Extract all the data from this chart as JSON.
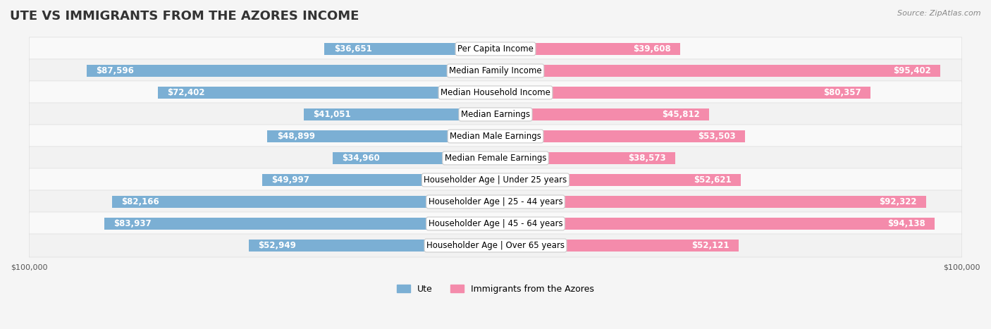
{
  "title": "UTE VS IMMIGRANTS FROM THE AZORES INCOME",
  "source": "Source: ZipAtlas.com",
  "categories": [
    "Per Capita Income",
    "Median Family Income",
    "Median Household Income",
    "Median Earnings",
    "Median Male Earnings",
    "Median Female Earnings",
    "Householder Age | Under 25 years",
    "Householder Age | 25 - 44 years",
    "Householder Age | 45 - 64 years",
    "Householder Age | Over 65 years"
  ],
  "ute_values": [
    36651,
    87596,
    72402,
    41051,
    48899,
    34960,
    49997,
    82166,
    83937,
    52949
  ],
  "azores_values": [
    39608,
    95402,
    80357,
    45812,
    53503,
    38573,
    52621,
    92322,
    94138,
    52121
  ],
  "ute_labels": [
    "$36,651",
    "$87,596",
    "$72,402",
    "$41,051",
    "$48,899",
    "$34,960",
    "$49,997",
    "$82,166",
    "$83,937",
    "$52,949"
  ],
  "azores_labels": [
    "$39,608",
    "$95,402",
    "$80,357",
    "$45,812",
    "$53,503",
    "$38,573",
    "$52,621",
    "$92,322",
    "$94,138",
    "$52,121"
  ],
  "ute_color": "#7bafd4",
  "azores_color": "#f48bab",
  "ute_color_dark": "#5a9abf",
  "azores_color_dark": "#e8608a",
  "max_value": 100000,
  "background_color": "#f5f5f5",
  "row_bg_color": "#ffffff",
  "row_alt_color": "#f0f0f0",
  "bar_height": 0.55,
  "title_fontsize": 13,
  "label_fontsize": 8.5,
  "category_fontsize": 8.5,
  "axis_label_fontsize": 8,
  "legend_fontsize": 9
}
